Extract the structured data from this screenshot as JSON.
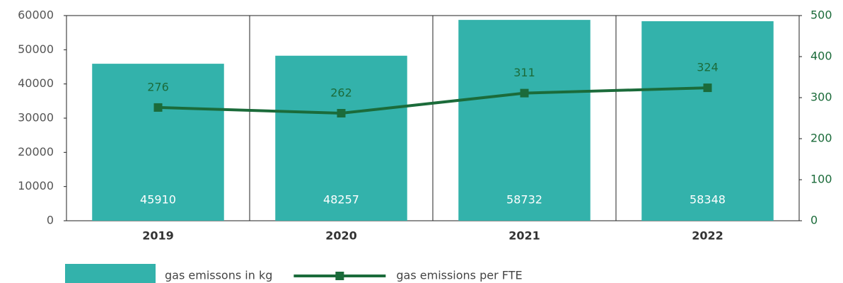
{
  "chart_data": {
    "type": "bar",
    "categories": [
      "2019",
      "2020",
      "2021",
      "2022"
    ],
    "series": [
      {
        "name": "gas emissons in kg",
        "type": "bar",
        "color": "#33b2ab",
        "values": [
          45910,
          48257,
          58732,
          58348
        ]
      },
      {
        "name": "gas emissions per FTE",
        "type": "line",
        "axis": "y2",
        "color": "#1b6b3a",
        "values": [
          276,
          262,
          311,
          324
        ]
      }
    ],
    "ylim": [
      0,
      60000
    ],
    "yticks": [
      0,
      10000,
      20000,
      30000,
      40000,
      50000,
      60000
    ],
    "y2lim": [
      0,
      500
    ],
    "y2ticks": [
      0,
      100,
      200,
      300,
      400,
      500
    ],
    "legend": "bottom"
  }
}
